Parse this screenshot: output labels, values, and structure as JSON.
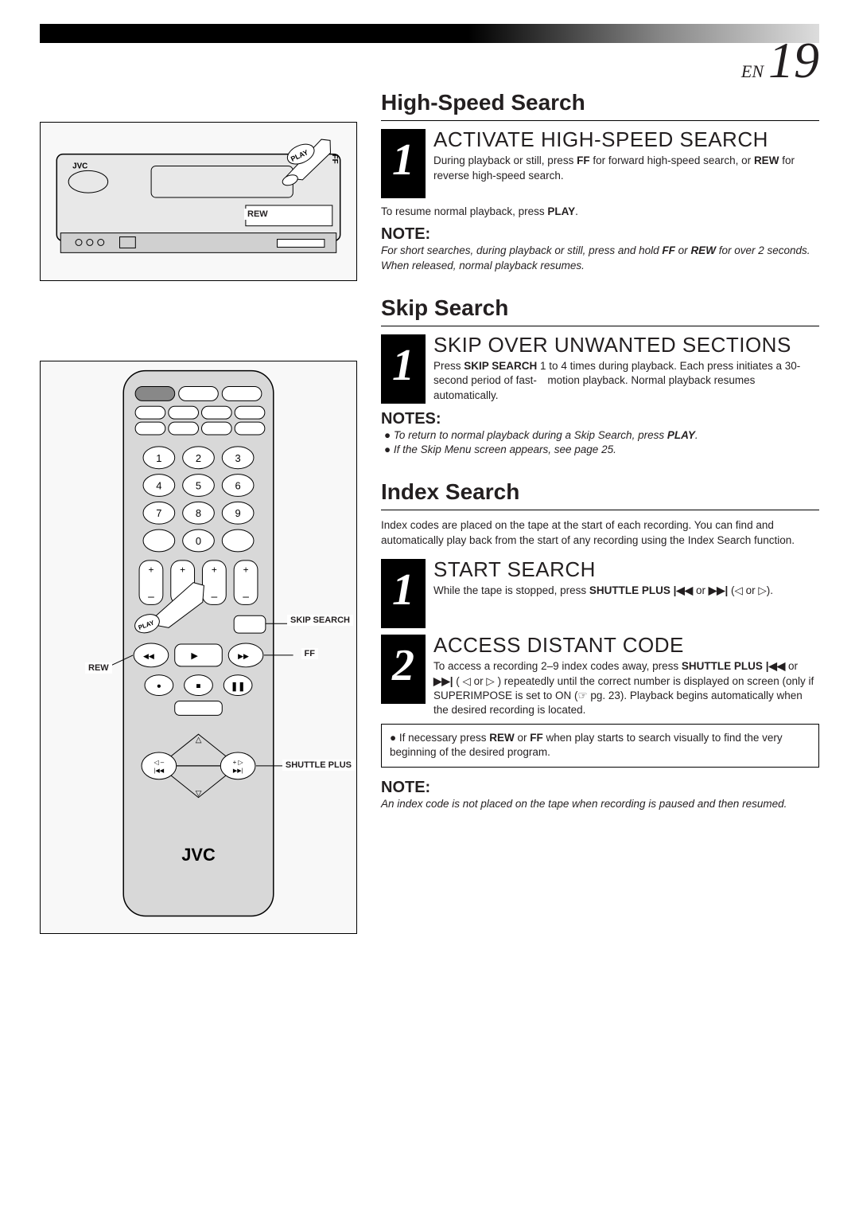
{
  "page": {
    "lang": "EN",
    "number": "19"
  },
  "vcr_labels": {
    "rew": "REW",
    "ff": "FF",
    "play": "PLAY",
    "brand": "JVC"
  },
  "remote_labels": {
    "skip_search": "SKIP SEARCH",
    "ff": "FF",
    "rew": "REW",
    "shuttle_plus": "SHUTTLE PLUS",
    "play": "PLAY",
    "brand": "JVC"
  },
  "sections": {
    "high_speed": {
      "title": "High-Speed Search",
      "step1": {
        "num": "1",
        "heading": "ACTIVATE HIGH-SPEED SEARCH",
        "body_html": "During playback or still, press <b>FF</b> for forward high-speed search, or <b>REW</b> for reverse high-speed search."
      },
      "resume_html": "To resume normal playback, press <b>PLAY</b>.",
      "note_label": "NOTE:",
      "note_html": "For short searches, during playback or still, press and hold <b>FF</b> or <b>REW</b> for over 2 seconds. When released, normal playback resumes."
    },
    "skip": {
      "title": "Skip Search",
      "step1": {
        "num": "1",
        "heading": "SKIP OVER UNWANTED SECTIONS",
        "body_html": "Press <b>SKIP SEARCH</b> 1 to 4 times during playback. Each press initiates a 30-second period of fast- motion playback. Normal playback resumes automatically."
      },
      "notes_label": "NOTES:",
      "notes": [
        "To return to normal playback during a Skip Search, press <b>PLAY</b>.",
        "If the Skip Menu screen appears, see page 25."
      ]
    },
    "index": {
      "title": "Index Search",
      "intro": "Index codes are placed on the tape at the start of each recording. You can find and automatically play back from the start of any recording using the Index Search function.",
      "step1": {
        "num": "1",
        "heading": "START SEARCH",
        "body_html": "While the tape is stopped, press <b>SHUTTLE PLUS</b> <b>|◀◀</b> or <b>▶▶|</b> (◁ or ▷)."
      },
      "step2": {
        "num": "2",
        "heading": "ACCESS DISTANT CODE",
        "body_html": "To access a recording 2–9 index codes away, press <b>SHUTTLE PLUS</b> <b>|◀◀</b> or <b>▶▶|</b> ( ◁ or ▷ ) repeatedly until the correct number is displayed on screen (only if SUPERIMPOSE is set to ON (☞ pg. 23). Playback begins automatically when the desired recording is located."
      },
      "tip_html": "If necessary press <b>REW</b> or <b>FF</b> when play starts to search visually to find the very beginning of the desired program.",
      "note_label": "NOTE:",
      "note_text": "An index code is not placed on the tape when recording is paused and then resumed."
    }
  },
  "colors": {
    "text": "#231f20",
    "heading": "#231f20",
    "bar_start": "#000000",
    "bar_end": "#dddddd",
    "step_bg": "#000000",
    "step_fg": "#ffffff"
  },
  "typography": {
    "body_size_pt": 10,
    "h2_size_pt": 21,
    "h3_size_pt": 20,
    "pagenum_size_pt": 48
  }
}
